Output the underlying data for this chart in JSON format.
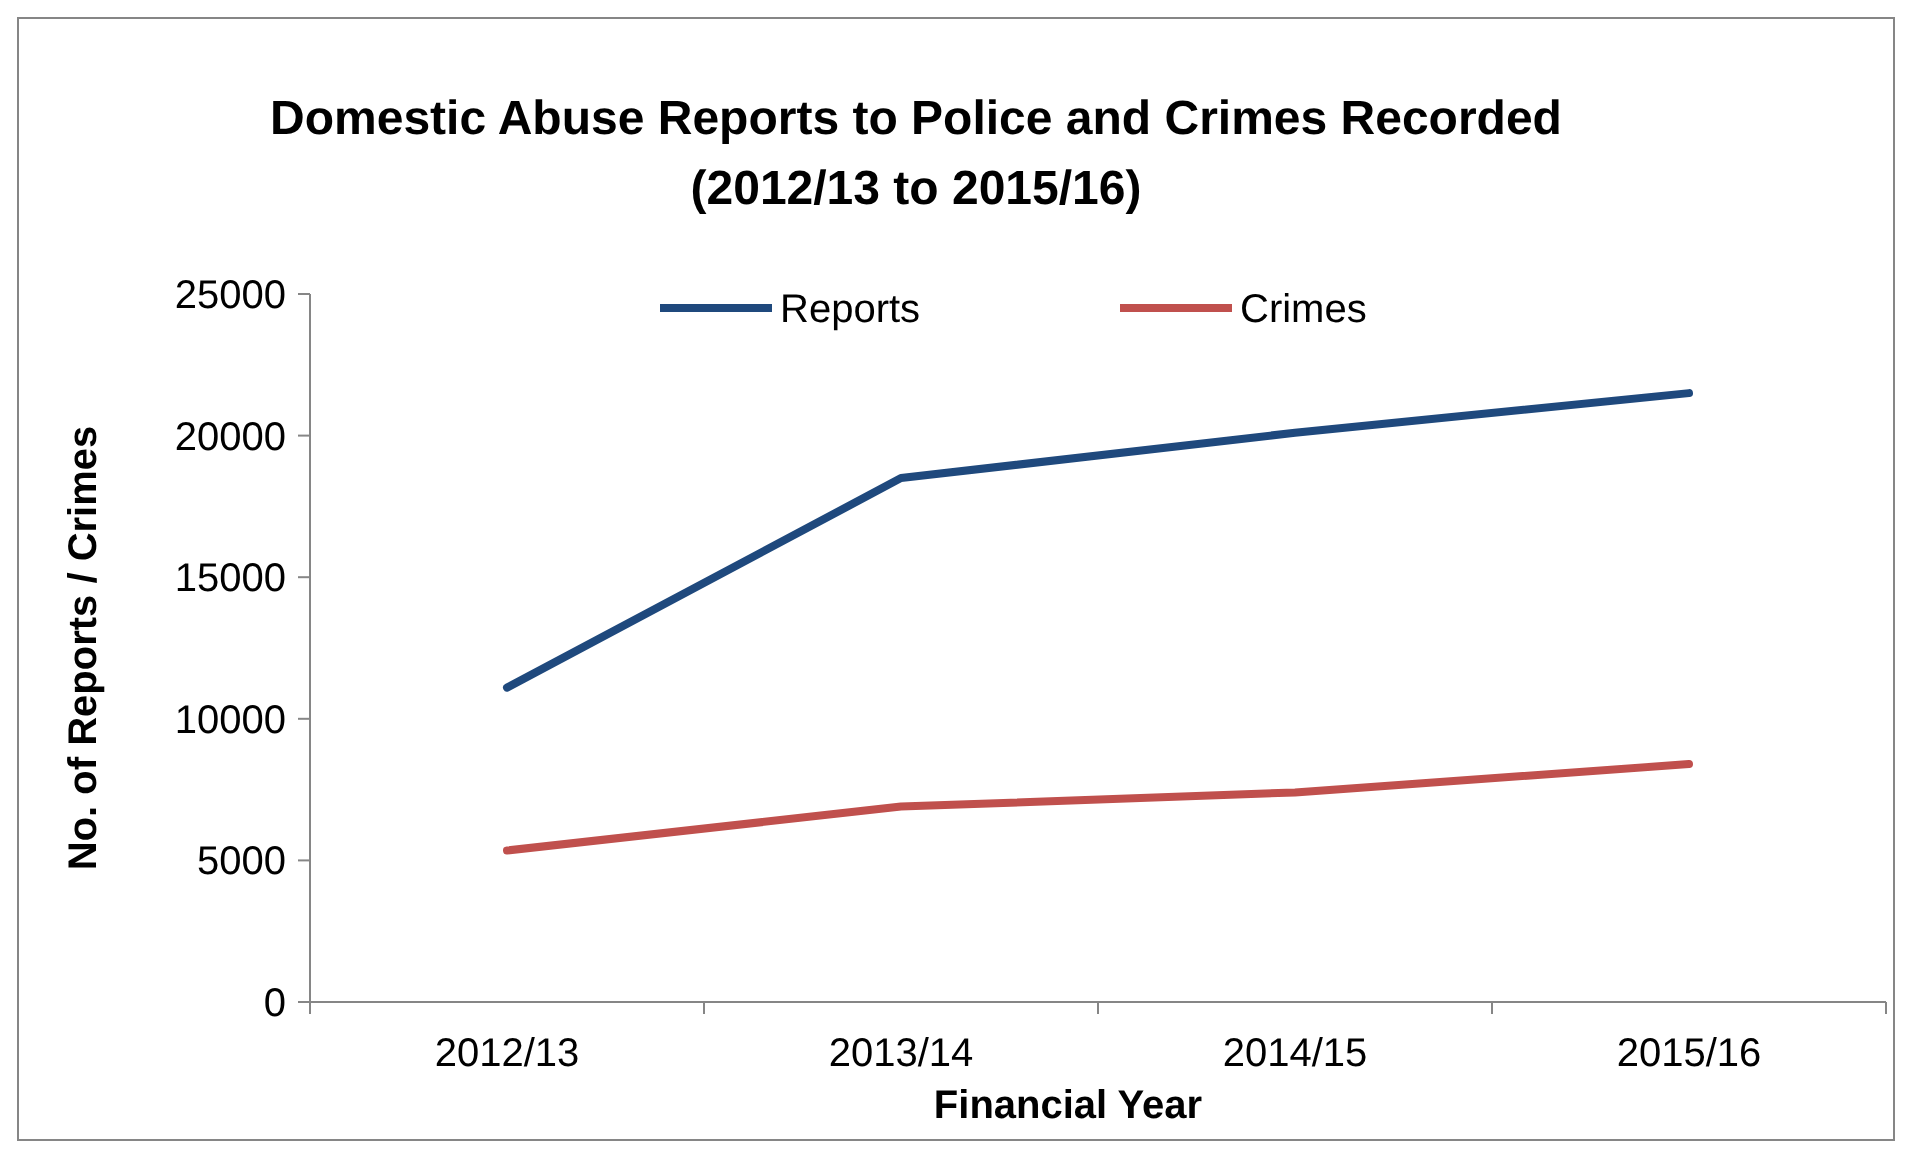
{
  "chart_data": {
    "type": "line",
    "title": "Domestic Abuse Reports to Police and Crimes Recorded",
    "subtitle": "(2012/13 to 2015/16)",
    "xlabel": "Financial Year",
    "ylabel": "No. of Reports / Crimes",
    "categories": [
      "2012/13",
      "2013/14",
      "2014/15",
      "2015/16"
    ],
    "series": [
      {
        "name": "Reports",
        "color": "#1f497d",
        "values": [
          11100,
          18500,
          20100,
          21500
        ]
      },
      {
        "name": "Crimes",
        "color": "#c0504d",
        "values": [
          5350,
          6900,
          7400,
          8400
        ]
      }
    ],
    "ylim": [
      0,
      25000
    ],
    "yticks": [
      0,
      5000,
      10000,
      15000,
      20000,
      25000
    ],
    "grid": false,
    "legend": "top",
    "marker": "none",
    "line_style": "solid"
  }
}
